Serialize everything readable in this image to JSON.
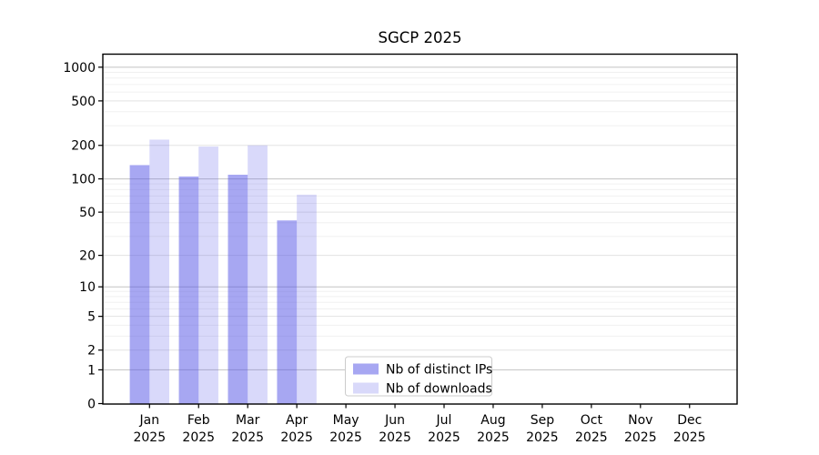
{
  "chart_data": {
    "type": "bar",
    "title": "SGCP 2025",
    "categories": [
      "Jan 2025",
      "Feb 2025",
      "Mar 2025",
      "Apr 2025",
      "May 2025",
      "Jun 2025",
      "Jul 2025",
      "Aug 2025",
      "Sep 2025",
      "Oct 2025",
      "Nov 2025",
      "Dec 2025"
    ],
    "series": [
      {
        "name": "Nb of distinct IPs",
        "color": "rgba(80,80,230,0.5)",
        "values": [
          133,
          105,
          109,
          42,
          null,
          null,
          null,
          null,
          null,
          null,
          null,
          null
        ]
      },
      {
        "name": "Nb of downloads",
        "color": "rgba(80,80,230,0.22)",
        "values": [
          225,
          195,
          200,
          72,
          null,
          null,
          null,
          null,
          null,
          null,
          null,
          null
        ]
      }
    ],
    "xlabel": "",
    "ylabel": "",
    "yscale": "log1p",
    "ylim": [
      0,
      1300
    ],
    "yticks": [
      0,
      1,
      2,
      5,
      10,
      20,
      50,
      100,
      200,
      500,
      1000
    ],
    "grid": "horizontal major and minor gridlines",
    "major_grid_values": [
      1,
      10,
      100,
      1000
    ],
    "mid_grid_values": [
      2,
      5,
      20,
      50,
      200,
      500
    ],
    "minor_grid_values": [
      3,
      4,
      6,
      7,
      8,
      9,
      30,
      40,
      60,
      70,
      80,
      90,
      300,
      400,
      600,
      700,
      800,
      900
    ],
    "legend_position": "lower center inside plot",
    "colors": {
      "axis": "#000000",
      "major_grid": "#c3c3c3",
      "mid_grid": "#e3e3e3",
      "minor_grid": "#f0f0f0",
      "legend_border": "#cccccc"
    }
  }
}
